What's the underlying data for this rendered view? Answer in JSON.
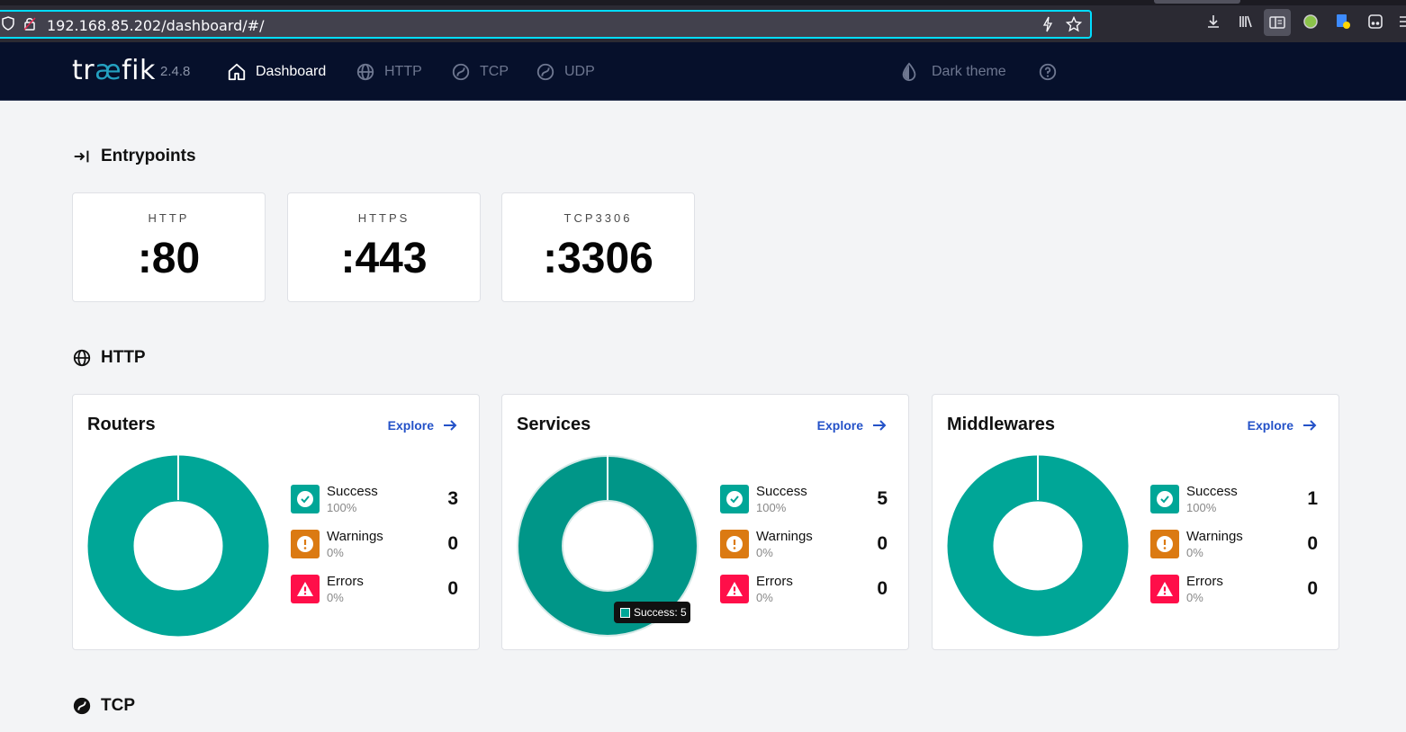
{
  "browser": {
    "url": "192.168.85.202/dashboard/#/"
  },
  "nav": {
    "logo_prefix": "tr",
    "logo_ae": "æ",
    "logo_suffix": "fik",
    "version": "2.4.8",
    "items": [
      {
        "label": "Dashboard",
        "icon": "home-icon"
      },
      {
        "label": "HTTP",
        "icon": "globe-icon"
      },
      {
        "label": "TCP",
        "icon": "tcp-icon"
      },
      {
        "label": "UDP",
        "icon": "udp-icon"
      }
    ],
    "theme_label": "Dark theme"
  },
  "entrypoints": {
    "title": "Entrypoints",
    "cards": [
      {
        "name": "HTTP",
        "port": ":80"
      },
      {
        "name": "HTTPS",
        "port": ":443"
      },
      {
        "name": "TCP3306",
        "port": ":3306"
      }
    ]
  },
  "http": {
    "title": "HTTP",
    "explore_label": "Explore",
    "panels": [
      {
        "title": "Routers",
        "success": "3",
        "warnings": "0",
        "errors": "0",
        "success_pct": "100%",
        "warnings_pct": "0%",
        "errors_pct": "0%"
      },
      {
        "title": "Services",
        "success": "5",
        "warnings": "0",
        "errors": "0",
        "success_pct": "100%",
        "warnings_pct": "0%",
        "errors_pct": "0%"
      },
      {
        "title": "Middlewares",
        "success": "1",
        "warnings": "0",
        "errors": "0",
        "success_pct": "100%",
        "warnings_pct": "0%",
        "errors_pct": "0%"
      }
    ],
    "legend_labels": {
      "success": "Success",
      "warnings": "Warnings",
      "errors": "Errors"
    },
    "tooltip": "Success: 5"
  },
  "tcp": {
    "title": "TCP"
  },
  "colors": {
    "success": "#00a697",
    "warning": "#db7a12",
    "error": "#ff0e49",
    "nav_bg": "#06102b",
    "accent": "#2452c8"
  }
}
